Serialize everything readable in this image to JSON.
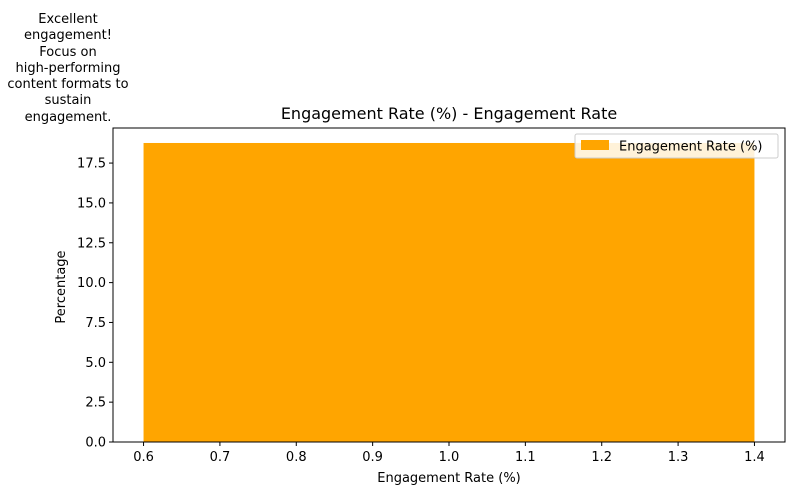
{
  "chart_data": {
    "type": "bar",
    "title": "Engagement Rate (%) - Engagement Rate",
    "xlabel": "Engagement Rate (%)",
    "ylabel": "Percentage",
    "bars": [
      {
        "x_start": 0.6,
        "x_end": 1.4,
        "value": 18.76
      }
    ],
    "xlim": [
      0.56,
      1.44
    ],
    "ylim": [
      0,
      19.7
    ],
    "xticks": [
      0.6,
      0.7,
      0.8,
      0.9,
      1.0,
      1.1,
      1.2,
      1.3,
      1.4
    ],
    "xtick_labels": [
      "0.6",
      "0.7",
      "0.8",
      "0.9",
      "1.0",
      "1.1",
      "1.2",
      "1.3",
      "1.4"
    ],
    "yticks": [
      0.0,
      2.5,
      5.0,
      7.5,
      10.0,
      12.5,
      15.0,
      17.5
    ],
    "ytick_labels": [
      "0.0",
      "2.5",
      "5.0",
      "7.5",
      "10.0",
      "12.5",
      "15.0",
      "17.5"
    ],
    "grid": false,
    "legend": {
      "placement": "top-right",
      "entries": [
        {
          "label": "Engagement Rate (%)",
          "color": "#ffa500"
        }
      ]
    },
    "colors": {
      "bar": "#ffa500"
    },
    "annotation": "Excellent\nengagement!\nFocus on\nhigh-performing\ncontent formats to\nsustain\nengagement."
  }
}
